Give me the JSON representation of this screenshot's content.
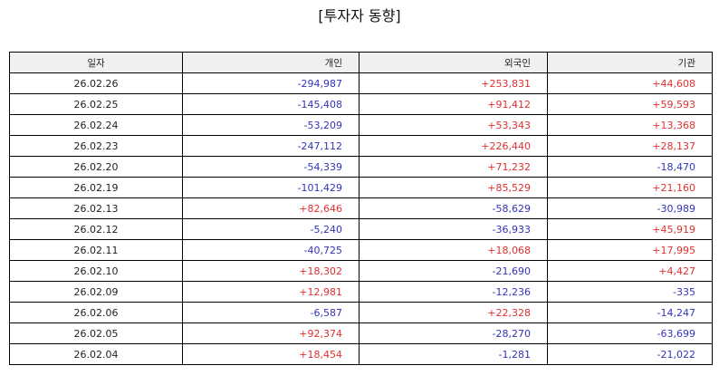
{
  "title": "[투자자 동향]",
  "table": {
    "columns": [
      "일자",
      "개인",
      "외국인",
      "기관"
    ],
    "rows": [
      {
        "date": "26.02.26",
        "individual": "-294,987",
        "foreign": "+253,831",
        "institution": "+44,608"
      },
      {
        "date": "26.02.25",
        "individual": "-145,408",
        "foreign": "+91,412",
        "institution": "+59,593"
      },
      {
        "date": "26.02.24",
        "individual": "-53,209",
        "foreign": "+53,343",
        "institution": "+13,368"
      },
      {
        "date": "26.02.23",
        "individual": "-247,112",
        "foreign": "+226,440",
        "institution": "+28,137"
      },
      {
        "date": "26.02.20",
        "individual": "-54,339",
        "foreign": "+71,232",
        "institution": "-18,470"
      },
      {
        "date": "26.02.19",
        "individual": "-101,429",
        "foreign": "+85,529",
        "institution": "+21,160"
      },
      {
        "date": "26.02.13",
        "individual": "+82,646",
        "foreign": "-58,629",
        "institution": "-30,989"
      },
      {
        "date": "26.02.12",
        "individual": "-5,240",
        "foreign": "-36,933",
        "institution": "+45,919"
      },
      {
        "date": "26.02.11",
        "individual": "-40,725",
        "foreign": "+18,068",
        "institution": "+17,995"
      },
      {
        "date": "26.02.10",
        "individual": "+18,302",
        "foreign": "-21,690",
        "institution": "+4,427"
      },
      {
        "date": "26.02.09",
        "individual": "+12,981",
        "foreign": "-12,236",
        "institution": "-335"
      },
      {
        "date": "26.02.06",
        "individual": "-6,587",
        "foreign": "+22,328",
        "institution": "-14,247"
      },
      {
        "date": "26.02.05",
        "individual": "+92,374",
        "foreign": "-28,270",
        "institution": "-63,699"
      },
      {
        "date": "26.02.04",
        "individual": "+18,454",
        "foreign": "-1,281",
        "institution": "-21,022"
      }
    ]
  },
  "colors": {
    "positive": "#e03030",
    "negative": "#3333bb",
    "header_bg": "#f0f0f0",
    "border": "#000000"
  }
}
